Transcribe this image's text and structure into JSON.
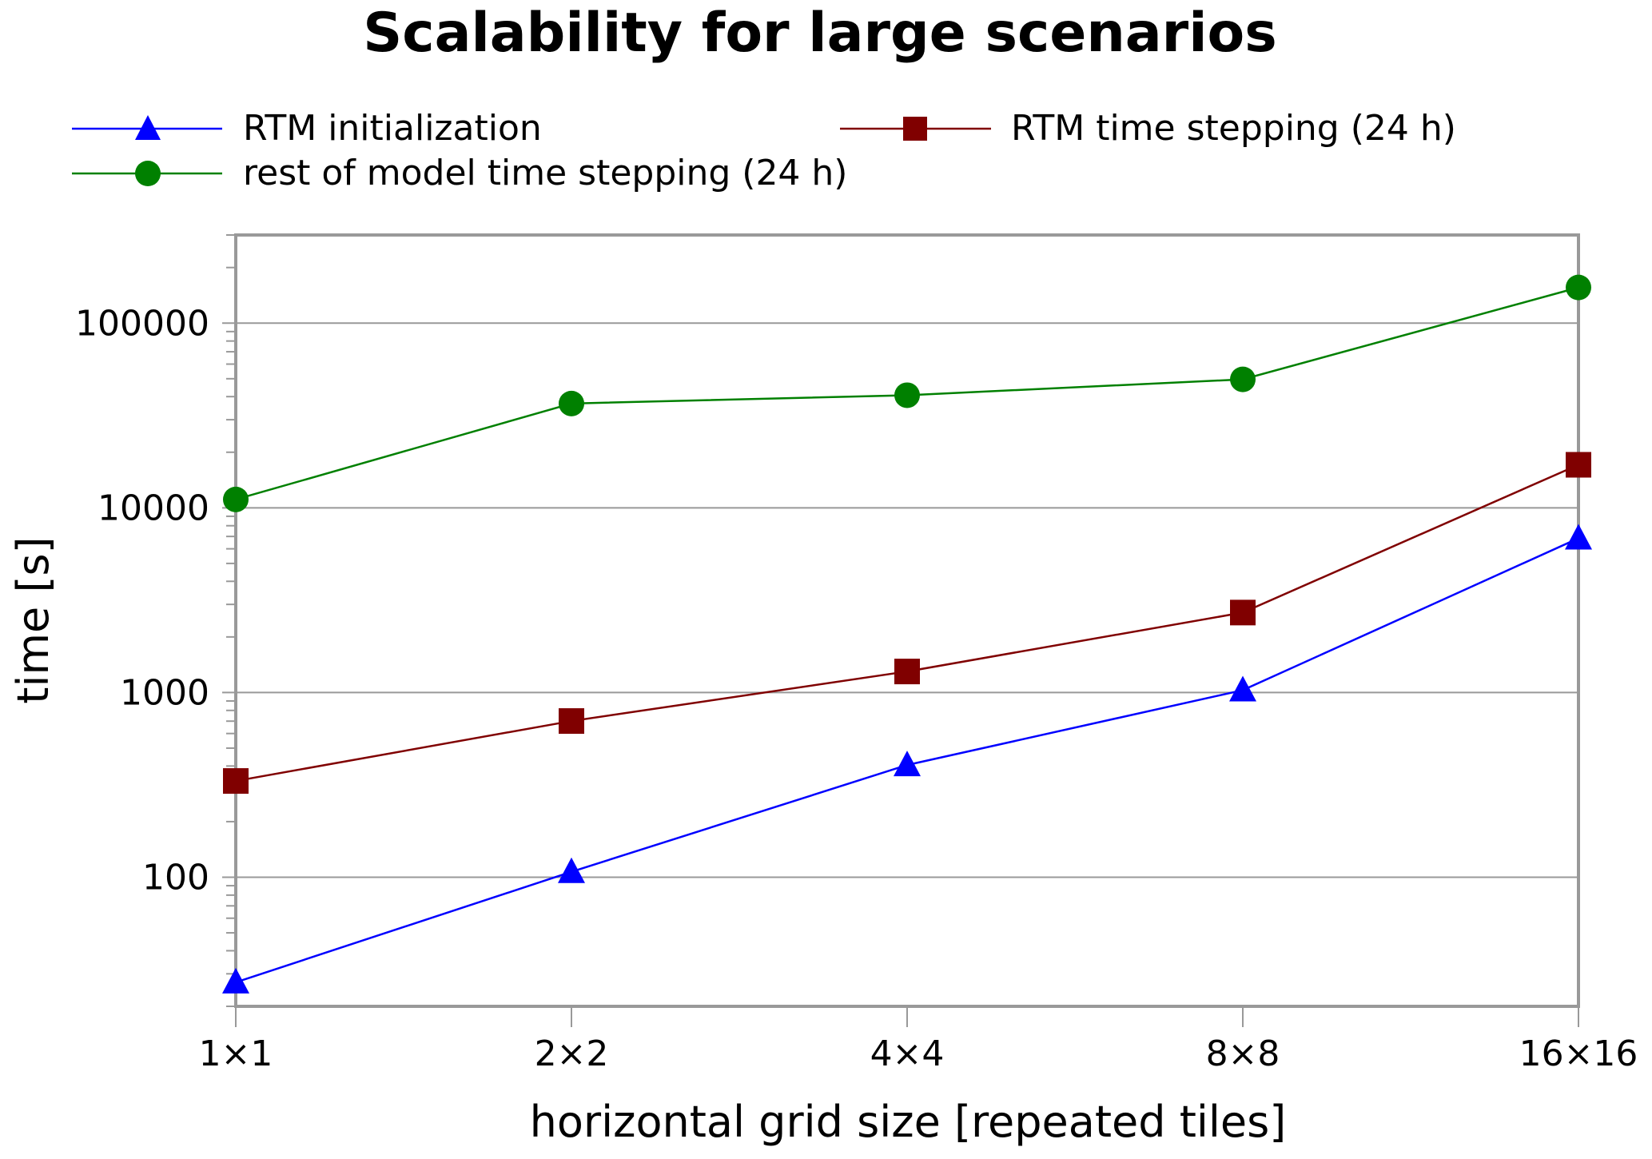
{
  "chart_data": {
    "type": "line",
    "title": "Scalability for large scenarios",
    "xlabel": "horizontal grid size [repeated tiles]",
    "ylabel": "time [s]",
    "yscale": "log",
    "ylim": [
      20,
      300000
    ],
    "categories": [
      "1×1",
      "2×2",
      "4×4",
      "8×8",
      "16×16"
    ],
    "yticks": [
      100,
      1000,
      10000,
      100000
    ],
    "ytick_labels": [
      "100",
      "1000",
      "10000",
      "100000"
    ],
    "grid": "horizontal major",
    "legend_placement": "top",
    "series": [
      {
        "name": "RTM initialization",
        "color": "#0000ff",
        "marker": "triangle",
        "values": [
          27,
          107,
          405,
          1030,
          6840
        ]
      },
      {
        "name": "RTM time stepping (24 h)",
        "color": "#800000",
        "marker": "square",
        "values": [
          332,
          701,
          1300,
          2710,
          17100
        ]
      },
      {
        "name": "rest of model time stepping (24 h)",
        "color": "#008000",
        "marker": "circle",
        "values": [
          11100,
          36700,
          40700,
          49600,
          156000
        ]
      }
    ]
  }
}
